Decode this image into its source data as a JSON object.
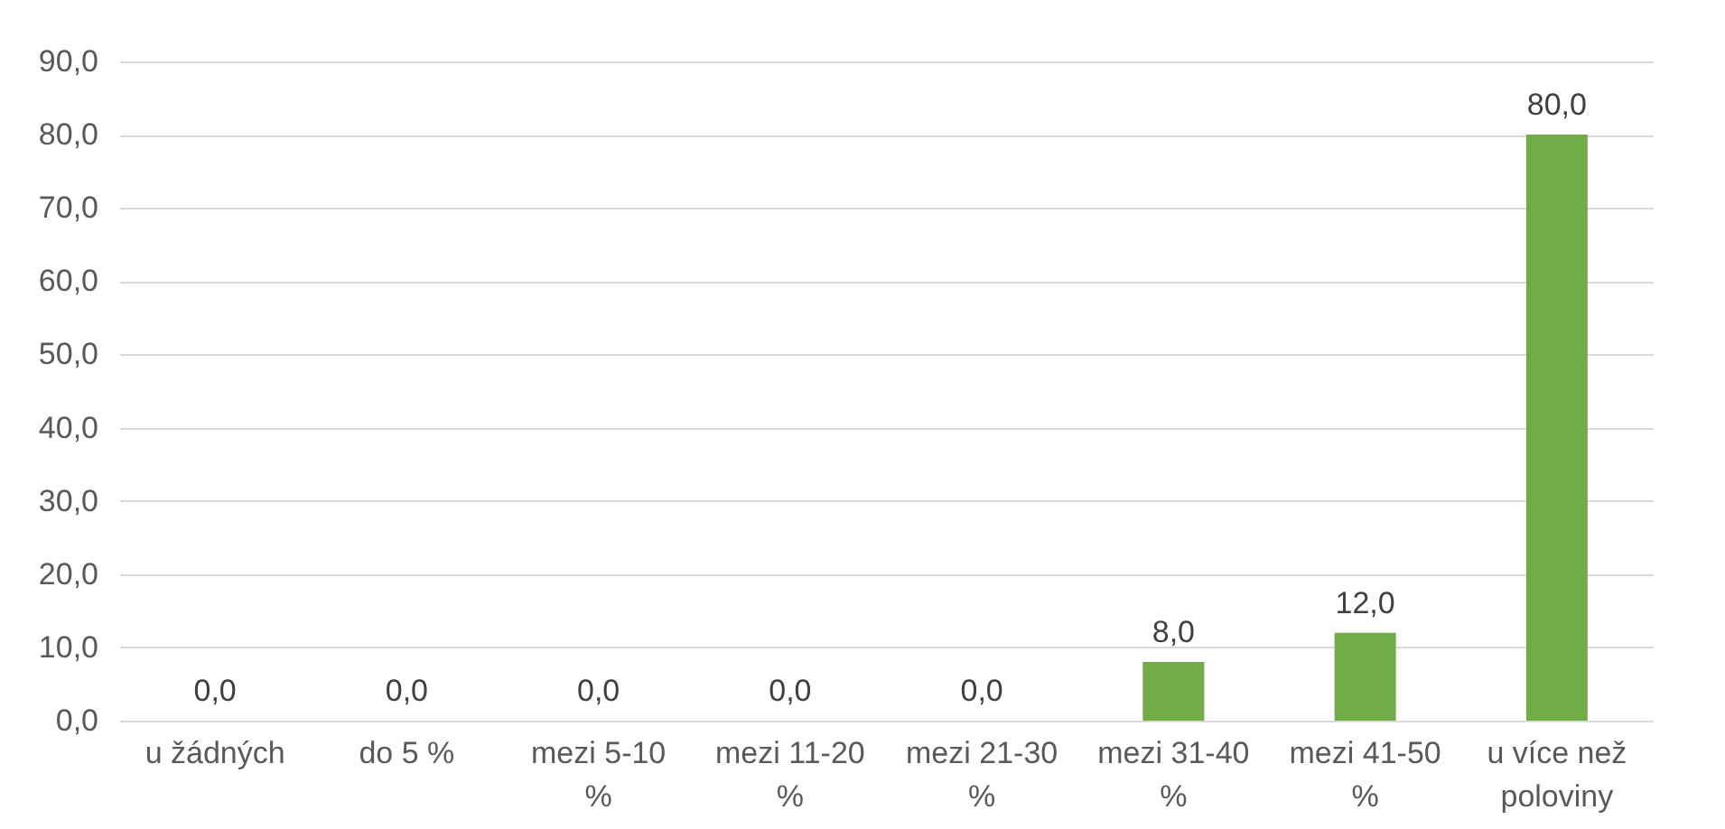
{
  "chart_data": {
    "type": "bar",
    "categories": [
      "u žádných",
      "do 5 %",
      "mezi 5-10 %",
      "mezi 11-20 %",
      "mezi 21-30 %",
      "mezi 31-40 %",
      "mezi 41-50 %",
      "u více než poloviny"
    ],
    "values": [
      0.0,
      0.0,
      0.0,
      0.0,
      0.0,
      8.0,
      12.0,
      80.0
    ],
    "value_labels": [
      "0,0",
      "0,0",
      "0,0",
      "0,0",
      "0,0",
      "8,0",
      "12,0",
      "80,0"
    ],
    "color": "#70ad47",
    "ylim": [
      0,
      90
    ],
    "yticks": [
      {
        "value": 0,
        "label": "0,0"
      },
      {
        "value": 10,
        "label": "10,0"
      },
      {
        "value": 20,
        "label": "20,0"
      },
      {
        "value": 30,
        "label": "30,0"
      },
      {
        "value": 40,
        "label": "40,0"
      },
      {
        "value": 50,
        "label": "50,0"
      },
      {
        "value": 60,
        "label": "60,0"
      },
      {
        "value": 70,
        "label": "70,0"
      },
      {
        "value": 80,
        "label": "80,0"
      },
      {
        "value": 90,
        "label": "90,0"
      }
    ],
    "grid": "y"
  }
}
